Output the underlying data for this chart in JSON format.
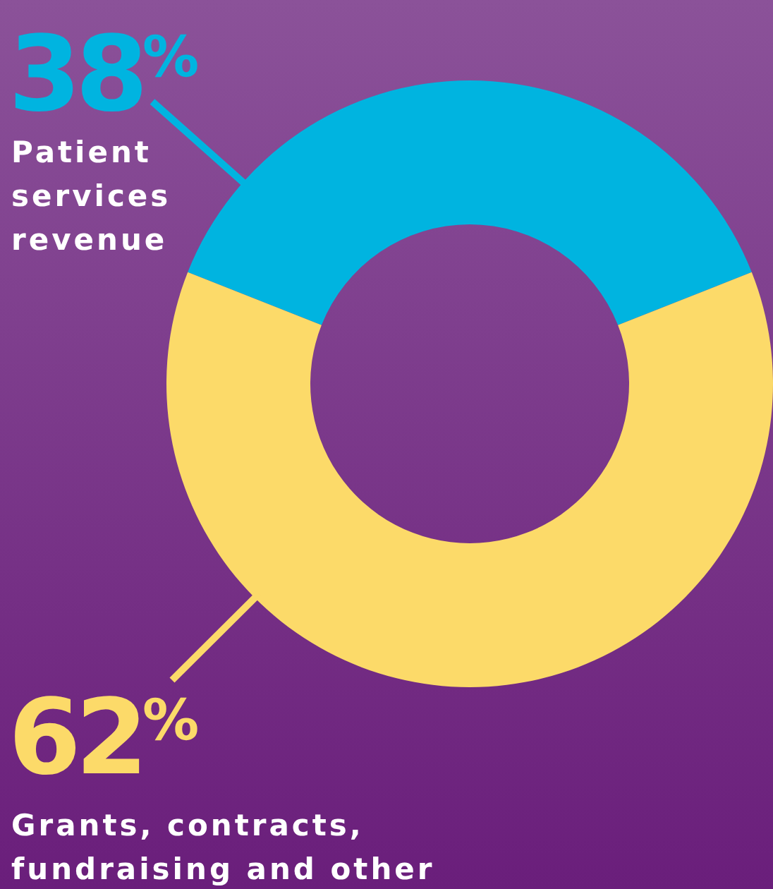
{
  "chart_data": {
    "type": "donut",
    "categories": [
      "Patient services revenue",
      "Grants, contracts, fundraising and other"
    ],
    "values": [
      38,
      62
    ],
    "colors": [
      "#00b4e0",
      "#fcda69"
    ],
    "value_labels": [
      "38$^{%}$",
      "62$^{%}$"
    ]
  }
}
